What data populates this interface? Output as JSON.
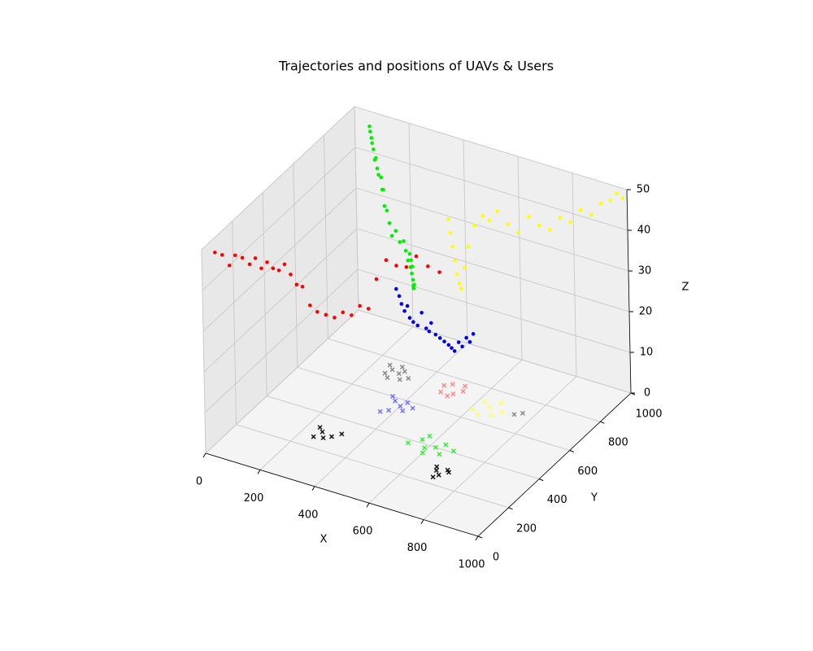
{
  "chart_data": {
    "type": "scatter3d",
    "title": "Trajectories and positions of UAVs & Users",
    "xlabel": "X",
    "ylabel": "Y",
    "zlabel": "Z",
    "xlim": [
      0,
      1000
    ],
    "ylim": [
      0,
      1000
    ],
    "zlim": [
      0,
      50
    ],
    "xticks": [
      0,
      200,
      400,
      600,
      800,
      1000
    ],
    "yticks": [
      0,
      200,
      400,
      600,
      800,
      1000
    ],
    "zticks": [
      0,
      10,
      20,
      30,
      40,
      50
    ],
    "grid": true,
    "series": [
      {
        "color": "#808080",
        "marker": "x",
        "x": [
          250,
          270,
          300,
          320,
          280,
          260,
          310,
          340,
          290,
          760,
          740
        ],
        "y": [
          760,
          740,
          730,
          700,
          690,
          710,
          750,
          720,
          770,
          720,
          700
        ],
        "z": [
          0,
          0,
          0,
          0,
          0,
          0,
          0,
          0,
          0,
          0,
          0
        ]
      },
      {
        "color": "#6666ff",
        "marker": "x",
        "x": [
          350,
          370,
          400,
          420,
          380,
          360,
          410,
          440
        ],
        "y": [
          600,
          580,
          560,
          540,
          520,
          500,
          590,
          570
        ],
        "z": [
          0,
          0,
          0,
          0,
          0,
          0,
          0,
          0
        ]
      },
      {
        "color": "#ff7f7f",
        "marker": "x",
        "x": [
          460,
          480,
          510,
          530,
          500,
          470,
          520
        ],
        "y": [
          740,
          760,
          710,
          740,
          690,
          700,
          770
        ],
        "z": [
          0,
          0,
          0,
          0,
          0,
          0,
          0
        ]
      },
      {
        "color": "#ffff55",
        "marker": "x",
        "x": [
          620,
          650,
          680,
          700,
          640,
          670,
          610
        ],
        "y": [
          720,
          700,
          660,
          690,
          640,
          740,
          660
        ],
        "z": [
          0,
          0,
          0,
          0,
          0,
          0,
          0
        ]
      },
      {
        "color": "#22ee22",
        "marker": "x",
        "x": [
          560,
          590,
          620,
          650,
          600,
          570,
          640,
          680,
          530
        ],
        "y": [
          420,
          380,
          400,
          370,
          350,
          450,
          430,
          410,
          380
        ],
        "z": [
          0,
          0,
          0,
          0,
          0,
          0,
          0,
          0,
          0
        ]
      },
      {
        "color": "#000000",
        "marker": "x",
        "x": [
          260,
          280,
          300,
          250,
          320,
          240,
          690,
          710,
          730,
          700,
          680,
          720
        ],
        "y": [
          300,
          270,
          290,
          260,
          320,
          320,
          280,
          260,
          290,
          240,
          300,
          300
        ],
        "z": [
          0,
          0,
          0,
          0,
          0,
          0,
          0,
          0,
          0,
          0,
          0,
          0
        ]
      },
      {
        "color": "#ff0000",
        "marker": "o",
        "x": [
          20,
          35,
          50,
          60,
          75,
          90,
          100,
          110,
          120,
          130,
          140,
          150,
          160,
          170,
          180,
          195,
          210,
          230,
          250,
          270,
          290,
          310,
          330,
          350,
          370,
          390,
          410,
          430,
          455,
          480
        ],
        "y": [
          50,
          70,
          90,
          110,
          130,
          150,
          170,
          190,
          210,
          230,
          250,
          270,
          290,
          310,
          330,
          350,
          370,
          390,
          410,
          430,
          450,
          470,
          490,
          510,
          540,
          570,
          600,
          630,
          660,
          690
        ],
        "z": [
          48,
          47,
          44,
          46,
          45,
          43,
          44,
          41,
          42,
          40,
          39,
          40,
          37,
          34,
          33,
          28,
          26,
          25,
          24,
          25,
          24,
          26,
          25,
          32,
          36,
          34,
          33,
          35,
          32,
          30
        ]
      },
      {
        "color": "#00ee00",
        "marker": "o",
        "x": [
          100,
          105,
          115,
          120,
          130,
          140,
          150,
          160,
          170,
          185,
          200,
          215,
          230,
          250,
          270,
          290,
          310,
          330,
          350,
          360,
          370,
          380,
          385,
          390,
          395,
          400,
          405,
          410,
          400,
          395
        ],
        "y": [
          920,
          915,
          905,
          900,
          890,
          880,
          870,
          860,
          850,
          840,
          820,
          800,
          780,
          760,
          740,
          720,
          710,
          700,
          690,
          685,
          680,
          675,
          670,
          665,
          660,
          655,
          650,
          648,
          660,
          670
        ],
        "z": [
          50,
          49,
          48,
          47,
          46,
          44,
          45,
          43,
          42,
          42,
          40,
          41,
          38,
          38,
          36,
          34,
          36,
          34,
          35,
          33,
          31,
          33,
          30,
          32,
          29,
          31,
          28,
          27,
          26,
          25
        ]
      },
      {
        "color": "#0000ee",
        "marker": "o",
        "x": [
          385,
          390,
          395,
          400,
          405,
          410,
          420,
          430,
          440,
          450,
          455,
          460,
          470,
          480,
          490,
          500,
          505,
          510,
          520,
          530,
          540,
          550,
          560
        ],
        "y": [
          575,
          585,
          590,
          600,
          610,
          615,
          620,
          630,
          640,
          650,
          660,
          665,
          675,
          685,
          695,
          705,
          715,
          725,
          735,
          740,
          750,
          755,
          760
        ],
        "z": [
          28,
          26,
          24,
          22,
          23,
          20,
          19,
          18,
          21,
          17,
          16,
          18,
          15,
          14,
          13,
          12,
          11,
          10,
          12,
          11,
          13,
          12,
          14
        ]
      },
      {
        "color": "#ffff00",
        "marker": "o",
        "x": [
          470,
          480,
          490,
          500,
          510,
          520,
          528,
          535,
          545,
          560,
          580,
          600,
          620,
          650,
          680,
          710,
          740,
          770,
          800,
          830,
          860,
          890,
          920,
          950,
          970,
          990
        ],
        "y": [
          770,
          765,
          760,
          755,
          750,
          748,
          745,
          755,
          765,
          780,
          800,
          810,
          825,
          840,
          855,
          870,
          885,
          900,
          915,
          930,
          945,
          960,
          970,
          980,
          985,
          990
        ],
        "z": [
          40,
          37,
          34,
          31,
          28,
          26,
          25,
          30,
          35,
          40,
          42,
          41,
          43,
          40,
          38,
          42,
          40,
          39,
          42,
          41,
          44,
          43,
          46,
          47,
          49,
          48
        ]
      }
    ]
  }
}
